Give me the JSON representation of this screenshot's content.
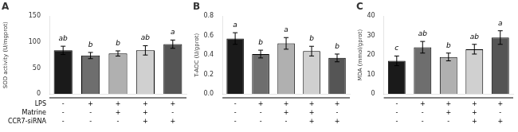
{
  "chart_data": [
    {
      "type": "bar",
      "title": "A",
      "ylabel": "SOD activity (U/mgprot)",
      "categories": [
        null,
        null,
        null,
        null,
        null
      ],
      "values": [
        84,
        74,
        78,
        84,
        96
      ],
      "errors": [
        8,
        6,
        5,
        9,
        8
      ],
      "annotations": [
        "ab",
        "b",
        "b",
        "ab",
        "a"
      ],
      "colors": [
        "#1a1a1a",
        "#6e6e6e",
        "#b0b0b0",
        "#d0d0d0",
        "#555555"
      ],
      "ylim": [
        0,
        150
      ],
      "yticks": [
        0,
        50,
        100,
        150
      ],
      "grid": false,
      "tick_labels": "y"
    },
    {
      "type": "bar",
      "title": "B",
      "ylabel": "T-AOC (U/gprot)",
      "categories": [
        null,
        null,
        null,
        null,
        null
      ],
      "values": [
        0.57,
        0.41,
        0.52,
        0.44,
        0.37
      ],
      "errors": [
        0.06,
        0.04,
        0.06,
        0.05,
        0.04
      ],
      "annotations": [
        "a",
        "b",
        "a",
        "b",
        "b"
      ],
      "colors": [
        "#1a1a1a",
        "#6e6e6e",
        "#b0b0b0",
        "#d0d0d0",
        "#555555"
      ],
      "ylim": [
        0,
        0.8
      ],
      "yticks": [
        {
          "value": 0,
          "label": "0.0"
        },
        0.2,
        0.4,
        0.6,
        0.8
      ],
      "grid": false,
      "tick_labels": "y"
    },
    {
      "type": "bar",
      "title": "C",
      "ylabel": "MDA (mmol/gprot)",
      "categories": [
        null,
        null,
        null,
        null,
        null
      ],
      "values": [
        17,
        24,
        19,
        23,
        29
      ],
      "errors": [
        2.5,
        3.0,
        2.0,
        2.5,
        3.5
      ],
      "annotations": [
        "c",
        "ab",
        "b",
        "ab",
        "a"
      ],
      "colors": [
        "#1a1a1a",
        "#6e6e6e",
        "#b0b0b0",
        "#d0d0d0",
        "#555555"
      ],
      "ylim": [
        0,
        40
      ],
      "yticks": [
        0,
        10,
        20,
        30,
        40
      ],
      "grid": false,
      "tick_labels": "y"
    }
  ],
  "table": {
    "row_labels": [
      "LPS",
      "Matrine",
      "CCR7-siRNA"
    ],
    "conditions": [
      [
        "-",
        "-",
        "-"
      ],
      [
        "+",
        "-",
        "-"
      ],
      [
        "+",
        "+",
        "-"
      ],
      [
        "+",
        "+",
        "+"
      ],
      [
        "+",
        "-",
        "+"
      ]
    ]
  }
}
